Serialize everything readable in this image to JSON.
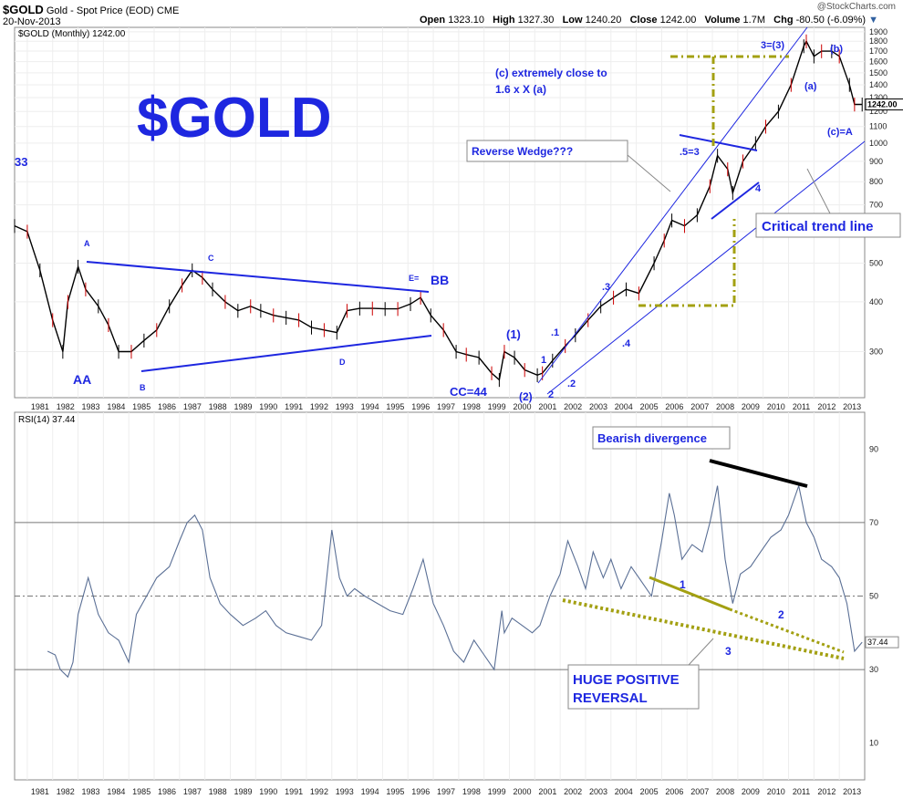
{
  "header": {
    "symbol": "$GOLD",
    "description": "Gold - Spot Price (EOD)",
    "exchange": "CME",
    "date": "20-Nov-2013",
    "watermark": "@StockCharts.com",
    "quote": {
      "open_label": "Open",
      "open": "1323.10",
      "high_label": "High",
      "high": "1327.30",
      "low_label": "Low",
      "low": "1240.20",
      "close_label": "Close",
      "close": "1242.00",
      "volume_label": "Volume",
      "volume": "1.7M",
      "chg_label": "Chg",
      "chg": "-80.50 (-6.09%)"
    }
  },
  "chart_data": [
    {
      "type": "line",
      "legend": "$GOLD (Monthly) 1242.00",
      "title": "$GOLD",
      "last_value_label": "1242.00",
      "yscale": "log",
      "ylim": [
        230,
        1950
      ],
      "yticks": [
        "300",
        "400",
        "500",
        "600",
        "700",
        "800",
        "900",
        "1000",
        "1100",
        "1200",
        "1300",
        "1400",
        "1500",
        "1600",
        "1700",
        "1800",
        "1900"
      ],
      "xlim": [
        1980.5,
        2014.0
      ],
      "xticks": [
        "1981",
        "1982",
        "1983",
        "1984",
        "1985",
        "1986",
        "1987",
        "1988",
        "1989",
        "1990",
        "1991",
        "1992",
        "1993",
        "1994",
        "1995",
        "1996",
        "1997",
        "1998",
        "1999",
        "2000",
        "2001",
        "2002",
        "2003",
        "2004",
        "2005",
        "2006",
        "2007",
        "2008",
        "2009",
        "2010",
        "2011",
        "2012",
        "2013"
      ],
      "series": [
        {
          "x": [
            1980.5,
            1981.0,
            1981.5,
            1982.0,
            1982.4,
            1982.6,
            1983.0,
            1983.3,
            1983.8,
            1984.2,
            1984.6,
            1985.1,
            1985.6,
            1986.1,
            1986.6,
            1987.1,
            1987.5,
            1987.9,
            1988.3,
            1988.8,
            1989.3,
            1989.8,
            1990.2,
            1990.7,
            1991.2,
            1991.7,
            1992.2,
            1992.7,
            1993.2,
            1993.6,
            1994.1,
            1994.6,
            1995.1,
            1995.6,
            1996.1,
            1996.5,
            1996.9,
            1997.4,
            1997.9,
            1998.3,
            1998.8,
            1999.3,
            1999.6,
            1999.8,
            2000.2,
            2000.6,
            2001.1,
            2001.3,
            2001.7,
            2002.2,
            2002.6,
            2003.1,
            2003.6,
            2004.1,
            2004.6,
            2005.1,
            2005.7,
            2006.1,
            2006.4,
            2006.9,
            2007.4,
            2007.9,
            2008.2,
            2008.6,
            2008.8,
            2009.2,
            2009.7,
            2010.1,
            2010.6,
            2011.1,
            2011.6,
            2011.7,
            2012.0,
            2012.3,
            2012.7,
            2013.0,
            2013.4,
            2013.6,
            2013.9
          ],
          "y": [
            620,
            600,
            480,
            360,
            300,
            400,
            490,
            430,
            390,
            350,
            300,
            300,
            320,
            340,
            390,
            440,
            480,
            460,
            430,
            400,
            380,
            390,
            380,
            370,
            365,
            360,
            345,
            340,
            335,
            380,
            385,
            385,
            384,
            384,
            395,
            410,
            370,
            340,
            300,
            295,
            290,
            265,
            255,
            300,
            290,
            270,
            262,
            265,
            285,
            310,
            330,
            360,
            390,
            410,
            430,
            420,
            500,
            570,
            640,
            620,
            660,
            780,
            930,
            860,
            750,
            900,
            1000,
            1100,
            1200,
            1400,
            1750,
            1800,
            1650,
            1700,
            1700,
            1650,
            1400,
            1250,
            1250
          ]
        }
      ],
      "annotations": {
        "big_title": "$GOLD",
        "wave_33": "33",
        "label_A": "A",
        "label_B": "B",
        "label_C": "C",
        "label_D": "D",
        "label_E": "E=",
        "label_AA": "AA",
        "label_BB": "BB",
        "label_CC": "CC=44",
        "label_w1p": "(1)",
        "label_w2p": "(2)",
        "label_1": "1",
        "label_2": "2",
        "label_d1": ".1",
        "label_d2": ".2",
        "label_d3": ".3",
        "label_d4": ".4",
        "label_d5": ".5=3",
        "label_4": "4",
        "label_w3": "3=(3)",
        "label_a": "(a)",
        "label_b": "(b)",
        "label_c": "(c)=A",
        "note_c": "(c) extremely close to",
        "note_c2": "1.6 x X (a)",
        "reverse_wedge": "Reverse Wedge???",
        "critical_trend": "Critical trend line"
      }
    },
    {
      "type": "line",
      "legend": "RSI(14) 37.44",
      "last_value_label": "37.44",
      "ylim": [
        0,
        100
      ],
      "yticks": [
        "10",
        "30",
        "50",
        "70",
        "90"
      ],
      "reference_lines": [
        30,
        50,
        70
      ],
      "xlim": [
        1980.5,
        2014.0
      ],
      "series": [
        {
          "x": [
            1981.8,
            1982.1,
            1982.3,
            1982.6,
            1982.8,
            1983.0,
            1983.4,
            1983.8,
            1984.2,
            1984.6,
            1985.0,
            1985.3,
            1985.7,
            1986.1,
            1986.6,
            1987.0,
            1987.3,
            1987.6,
            1987.9,
            1988.2,
            1988.6,
            1989.0,
            1989.5,
            1990.0,
            1990.4,
            1990.8,
            1991.2,
            1991.7,
            1992.2,
            1992.6,
            1993.0,
            1993.3,
            1993.6,
            1993.9,
            1994.3,
            1994.8,
            1995.3,
            1995.8,
            1996.2,
            1996.6,
            1997.0,
            1997.4,
            1997.8,
            1998.2,
            1998.6,
            1999.0,
            1999.4,
            1999.7,
            1999.8,
            2000.1,
            2000.5,
            2000.9,
            2001.2,
            2001.6,
            2002.0,
            2002.3,
            2002.7,
            2003.0,
            2003.3,
            2003.7,
            2004.0,
            2004.4,
            2004.8,
            2005.2,
            2005.6,
            2006.0,
            2006.3,
            2006.5,
            2006.8,
            2007.2,
            2007.6,
            2007.9,
            2008.2,
            2008.5,
            2008.8,
            2009.1,
            2009.5,
            2009.9,
            2010.3,
            2010.7,
            2011.0,
            2011.4,
            2011.7,
            2012.0,
            2012.3,
            2012.7,
            2013.0,
            2013.3,
            2013.6,
            2013.9
          ],
          "y": [
            35,
            34,
            30,
            28,
            32,
            45,
            55,
            45,
            40,
            38,
            32,
            45,
            50,
            55,
            58,
            65,
            70,
            72,
            68,
            55,
            48,
            45,
            42,
            44,
            46,
            42,
            40,
            39,
            38,
            42,
            68,
            55,
            50,
            52,
            50,
            48,
            46,
            45,
            52,
            60,
            48,
            42,
            35,
            32,
            38,
            34,
            30,
            46,
            40,
            44,
            42,
            40,
            42,
            50,
            56,
            65,
            58,
            52,
            62,
            55,
            60,
            52,
            58,
            54,
            50,
            65,
            78,
            72,
            60,
            64,
            62,
            70,
            80,
            60,
            48,
            56,
            58,
            62,
            66,
            68,
            72,
            80,
            70,
            66,
            60,
            58,
            55,
            48,
            35,
            37.44
          ]
        }
      ],
      "annotations": {
        "bearish": "Bearish divergence",
        "positive": "HUGE POSITIVE",
        "positive2": "REVERSAL",
        "line1": "1",
        "line2": "2",
        "line3": "3"
      }
    }
  ]
}
